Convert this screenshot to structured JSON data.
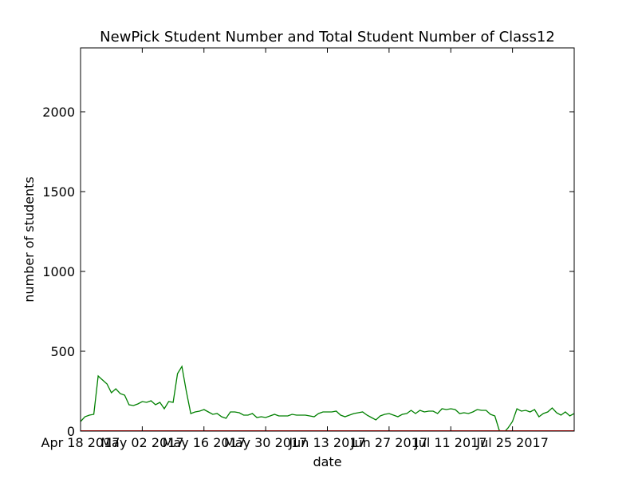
{
  "chart_data": {
    "type": "line",
    "title": "NewPick Student Number and Total Student Number of Class12",
    "xlabel": "date",
    "ylabel": "number of students",
    "ylim": [
      0,
      2400
    ],
    "yticks": [
      0,
      500,
      1000,
      1500,
      2000
    ],
    "xticks": [
      "Apr 18 2017",
      "May 02 2017",
      "May 16 2017",
      "May 30 2017",
      "Jun 13 2017",
      "Jun 27 2017",
      "Jul 11 2017",
      "Jul 25 2017"
    ],
    "grid": false,
    "series": [
      {
        "color": "#008000",
        "x": [
          "2017-04-18",
          "2017-04-19",
          "2017-04-20",
          "2017-04-21",
          "2017-04-22",
          "2017-04-23",
          "2017-04-24",
          "2017-04-25",
          "2017-04-26",
          "2017-04-27",
          "2017-04-28",
          "2017-04-29",
          "2017-04-30",
          "2017-05-01",
          "2017-05-02",
          "2017-05-03",
          "2017-05-04",
          "2017-05-05",
          "2017-05-06",
          "2017-05-07",
          "2017-05-08",
          "2017-05-09",
          "2017-05-10",
          "2017-05-11",
          "2017-05-12",
          "2017-05-13",
          "2017-05-14",
          "2017-05-15",
          "2017-05-16",
          "2017-05-17",
          "2017-05-18",
          "2017-05-19",
          "2017-05-20",
          "2017-05-21",
          "2017-05-22",
          "2017-05-23",
          "2017-05-24",
          "2017-05-25",
          "2017-05-26",
          "2017-05-27",
          "2017-05-28",
          "2017-05-29",
          "2017-05-30",
          "2017-05-31",
          "2017-06-01",
          "2017-06-02",
          "2017-06-03",
          "2017-06-04",
          "2017-06-05",
          "2017-06-06",
          "2017-06-07",
          "2017-06-08",
          "2017-06-09",
          "2017-06-10",
          "2017-06-11",
          "2017-06-12",
          "2017-06-13",
          "2017-06-14",
          "2017-06-15",
          "2017-06-16",
          "2017-06-17",
          "2017-06-18",
          "2017-06-19",
          "2017-06-20",
          "2017-06-21",
          "2017-06-22",
          "2017-06-23",
          "2017-06-24",
          "2017-06-25",
          "2017-06-26",
          "2017-06-27",
          "2017-06-28",
          "2017-06-29",
          "2017-06-30",
          "2017-07-01",
          "2017-07-02",
          "2017-07-03",
          "2017-07-04",
          "2017-07-05",
          "2017-07-06",
          "2017-07-07",
          "2017-07-08",
          "2017-07-09",
          "2017-07-10",
          "2017-07-11",
          "2017-07-12",
          "2017-07-13",
          "2017-07-14",
          "2017-07-15",
          "2017-07-16",
          "2017-07-17",
          "2017-07-18",
          "2017-07-19",
          "2017-07-20",
          "2017-07-21",
          "2017-07-22",
          "2017-07-23",
          "2017-07-24",
          "2017-07-25",
          "2017-07-26",
          "2017-07-27",
          "2017-07-28",
          "2017-07-29",
          "2017-07-30",
          "2017-07-31",
          "2017-08-01",
          "2017-08-02",
          "2017-08-03",
          "2017-08-04",
          "2017-08-05",
          "2017-08-06",
          "2017-08-07",
          "2017-08-08"
        ],
        "values": [
          60,
          90,
          100,
          105,
          345,
          320,
          295,
          240,
          265,
          235,
          225,
          165,
          160,
          170,
          185,
          180,
          190,
          165,
          180,
          140,
          185,
          180,
          360,
          405,
          250,
          110,
          120,
          125,
          135,
          120,
          105,
          110,
          90,
          80,
          120,
          120,
          115,
          100,
          100,
          110,
          85,
          90,
          85,
          95,
          105,
          95,
          95,
          95,
          105,
          100,
          100,
          100,
          95,
          90,
          110,
          120,
          120,
          120,
          125,
          100,
          90,
          100,
          110,
          115,
          120,
          100,
          85,
          70,
          95,
          105,
          110,
          100,
          90,
          105,
          110,
          130,
          110,
          130,
          120,
          125,
          125,
          110,
          140,
          135,
          140,
          135,
          110,
          115,
          110,
          120,
          135,
          130,
          130,
          105,
          95,
          5,
          -10,
          20,
          60,
          140,
          125,
          130,
          120,
          135,
          90,
          110,
          120,
          145,
          115,
          100,
          120,
          95,
          110
        ]
      },
      {
        "color": "#ff0000",
        "x": [
          "2017-04-18",
          "2017-08-08"
        ],
        "values": [
          2,
          2
        ]
      }
    ]
  }
}
